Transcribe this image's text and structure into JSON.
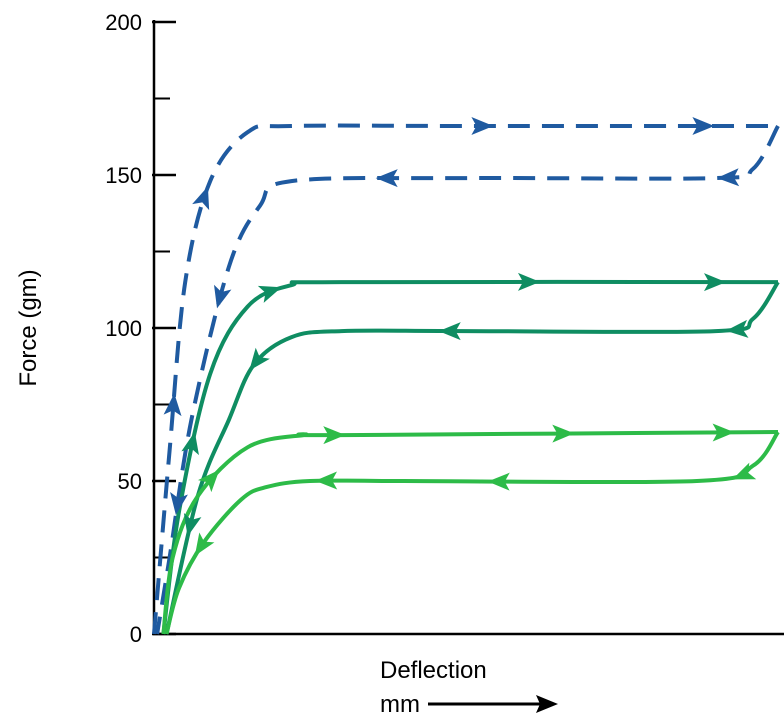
{
  "chart_data": {
    "type": "line",
    "title": "",
    "xlabel": "Deflection",
    "xunit": "mm",
    "ylabel": "Force (gm)",
    "ylim": [
      0,
      200
    ],
    "yticks": [
      0,
      50,
      100,
      150,
      200
    ],
    "grid": false,
    "legend": "none",
    "series": [
      {
        "style": "dashed",
        "color": "#1f5aa0",
        "loading": [
          [
            0.0,
            0
          ],
          [
            0.25,
            60
          ],
          [
            0.5,
            115
          ],
          [
            0.9,
            148
          ],
          [
            1.5,
            164
          ],
          [
            2.2,
            166
          ],
          [
            5.0,
            166
          ],
          [
            10.0,
            166
          ]
        ],
        "unloading": [
          [
            10.0,
            166
          ],
          [
            9.6,
            152
          ],
          [
            9.0,
            149
          ],
          [
            5.0,
            149
          ],
          [
            2.2,
            148
          ],
          [
            1.7,
            140
          ],
          [
            1.2,
            120
          ],
          [
            0.6,
            70
          ],
          [
            0.25,
            25
          ],
          [
            0.05,
            0
          ]
        ]
      },
      {
        "style": "solid",
        "color": "#0f8d62",
        "loading": [
          [
            0.15,
            0
          ],
          [
            0.4,
            40
          ],
          [
            0.9,
            85
          ],
          [
            1.5,
            107
          ],
          [
            2.2,
            114
          ],
          [
            3.0,
            115
          ],
          [
            10.0,
            115
          ]
        ],
        "unloading": [
          [
            10.0,
            115
          ],
          [
            9.6,
            103
          ],
          [
            9.0,
            99
          ],
          [
            5.0,
            99
          ],
          [
            3.0,
            99
          ],
          [
            2.2,
            97
          ],
          [
            1.6,
            88
          ],
          [
            1.2,
            70
          ],
          [
            0.7,
            45
          ],
          [
            0.2,
            0
          ]
        ]
      },
      {
        "style": "solid",
        "color": "#2dbb48",
        "loading": [
          [
            0.15,
            0
          ],
          [
            0.3,
            25
          ],
          [
            0.7,
            45
          ],
          [
            1.5,
            61
          ],
          [
            2.4,
            65
          ],
          [
            3.0,
            65
          ],
          [
            10.0,
            66
          ]
        ],
        "unloading": [
          [
            10.0,
            66
          ],
          [
            9.6,
            55
          ],
          [
            8.7,
            50
          ],
          [
            4.0,
            50
          ],
          [
            2.5,
            50
          ],
          [
            1.8,
            48
          ],
          [
            1.4,
            44
          ],
          [
            0.8,
            30
          ],
          [
            0.4,
            15
          ],
          [
            0.2,
            0
          ]
        ]
      }
    ]
  }
}
